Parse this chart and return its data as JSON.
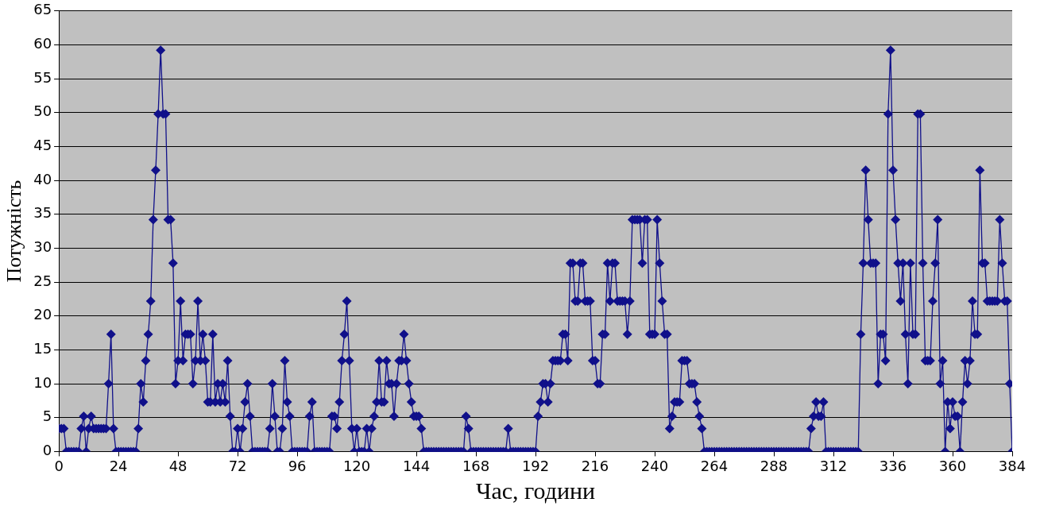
{
  "chart_data": {
    "type": "line",
    "xlabel": "Час, години",
    "ylabel": "Потужність",
    "xlim": [
      0,
      384
    ],
    "xticks": [
      0,
      24,
      48,
      72,
      96,
      120,
      144,
      168,
      192,
      216,
      240,
      264,
      288,
      312,
      336,
      360,
      384
    ],
    "ylim": [
      0,
      65
    ],
    "yticks": [
      0,
      5,
      10,
      15,
      20,
      25,
      30,
      35,
      40,
      45,
      50,
      55,
      60,
      65
    ],
    "grid": "y",
    "legend": false,
    "marker": "diamond",
    "line_style": "solid",
    "x": [
      0,
      1,
      2,
      3,
      4,
      5,
      6,
      7,
      8,
      9,
      10,
      11,
      12,
      13,
      14,
      15,
      16,
      17,
      18,
      19,
      20,
      21,
      22,
      23,
      24,
      25,
      26,
      27,
      28,
      29,
      30,
      31,
      32,
      33,
      34,
      35,
      36,
      37,
      38,
      39,
      40,
      41,
      42,
      43,
      44,
      45,
      46,
      47,
      48,
      49,
      50,
      51,
      52,
      53,
      54,
      55,
      56,
      57,
      58,
      59,
      60,
      61,
      62,
      63,
      64,
      65,
      66,
      67,
      68,
      69,
      70,
      71,
      72,
      73,
      74,
      75,
      76,
      77,
      78,
      79,
      80,
      81,
      82,
      83,
      84,
      85,
      86,
      87,
      88,
      89,
      90,
      91,
      92,
      93,
      94,
      95,
      96,
      97,
      98,
      99,
      100,
      101,
      102,
      103,
      104,
      105,
      106,
      107,
      108,
      109,
      110,
      111,
      112,
      113,
      114,
      115,
      116,
      117,
      118,
      119,
      120,
      121,
      122,
      123,
      124,
      125,
      126,
      127,
      128,
      129,
      130,
      131,
      132,
      133,
      134,
      135,
      136,
      137,
      138,
      139,
      140,
      141,
      142,
      143,
      144,
      145,
      146,
      147,
      148,
      149,
      150,
      151,
      152,
      153,
      154,
      155,
      156,
      157,
      158,
      159,
      160,
      161,
      162,
      163,
      164,
      165,
      166,
      167,
      168,
      169,
      170,
      171,
      172,
      173,
      174,
      175,
      176,
      177,
      178,
      179,
      180,
      181,
      182,
      183,
      184,
      185,
      186,
      187,
      188,
      189,
      190,
      191,
      192,
      193,
      194,
      195,
      196,
      197,
      198,
      199,
      200,
      201,
      202,
      203,
      204,
      205,
      206,
      207,
      208,
      209,
      210,
      211,
      212,
      213,
      214,
      215,
      216,
      217,
      218,
      219,
      220,
      221,
      222,
      223,
      224,
      225,
      226,
      227,
      228,
      229,
      230,
      231,
      232,
      233,
      234,
      235,
      236,
      237,
      238,
      239,
      240,
      241,
      242,
      243,
      244,
      245,
      246,
      247,
      248,
      249,
      250,
      251,
      252,
      253,
      254,
      255,
      256,
      257,
      258,
      259,
      260,
      261,
      262,
      263,
      264,
      265,
      266,
      267,
      268,
      269,
      270,
      271,
      272,
      273,
      274,
      275,
      276,
      277,
      278,
      279,
      280,
      281,
      282,
      283,
      284,
      285,
      286,
      287,
      288,
      289,
      290,
      291,
      292,
      293,
      294,
      295,
      296,
      297,
      298,
      299,
      300,
      301,
      302,
      303,
      304,
      305,
      306,
      307,
      308,
      309,
      310,
      311,
      312,
      313,
      314,
      315,
      316,
      317,
      318,
      319,
      320,
      321,
      322,
      323,
      324,
      325,
      326,
      327,
      328,
      329,
      330,
      331,
      332,
      333,
      334,
      335,
      336,
      337,
      338,
      339,
      340,
      341,
      342,
      343,
      344,
      345,
      346,
      347,
      348,
      349,
      350,
      351,
      352,
      353,
      354,
      355,
      356,
      357,
      358,
      359,
      360,
      361,
      362,
      363,
      364,
      365,
      366,
      367,
      368,
      369,
      370,
      371,
      372,
      373,
      374,
      375,
      376,
      377,
      378,
      379,
      380,
      381,
      382,
      383,
      384
    ],
    "series": [
      {
        "color": "#10108a",
        "values": [
          3.4,
          3.4,
          3.4,
          0,
          0,
          0,
          0,
          0,
          0,
          3.4,
          5.2,
          0,
          3.4,
          5.2,
          3.4,
          3.4,
          3.4,
          3.4,
          3.4,
          3.4,
          10,
          17.3,
          3.4,
          0,
          0,
          0,
          0,
          0,
          0,
          0,
          0,
          0,
          3.4,
          10,
          7.3,
          13.4,
          17.3,
          22.2,
          34.2,
          41.5,
          49.8,
          59.2,
          49.8,
          49.8,
          34.2,
          34.2,
          27.8,
          10,
          13.4,
          22.2,
          13.4,
          17.3,
          17.3,
          17.3,
          10,
          13.4,
          22.2,
          13.4,
          17.3,
          13.4,
          7.3,
          7.3,
          17.3,
          7.3,
          10,
          7.3,
          10,
          7.3,
          13.4,
          5.2,
          0,
          0,
          3.4,
          0,
          3.4,
          7.3,
          10,
          5.2,
          0,
          0,
          0,
          0,
          0,
          0,
          0,
          3.4,
          10,
          5.2,
          0,
          0,
          3.4,
          13.4,
          7.3,
          5.2,
          0,
          0,
          0,
          0,
          0,
          0,
          0,
          5.2,
          7.3,
          0,
          0,
          0,
          0,
          0,
          0,
          0,
          5.2,
          5.2,
          3.4,
          7.3,
          13.4,
          17.3,
          22.2,
          13.4,
          3.4,
          0,
          3.4,
          0,
          0,
          0,
          3.4,
          0,
          3.4,
          5.2,
          7.3,
          13.4,
          7.3,
          7.3,
          13.4,
          10,
          10,
          5.2,
          10,
          13.4,
          13.4,
          17.3,
          13.4,
          10,
          7.3,
          5.2,
          5.2,
          5.2,
          3.4,
          0,
          0,
          0,
          0,
          0,
          0,
          0,
          0,
          0,
          0,
          0,
          0,
          0,
          0,
          0,
          0,
          0,
          5.2,
          3.4,
          0,
          0,
          0,
          0,
          0,
          0,
          0,
          0,
          0,
          0,
          0,
          0,
          0,
          0,
          0,
          3.4,
          0,
          0,
          0,
          0,
          0,
          0,
          0,
          0,
          0,
          0,
          0,
          5.2,
          7.3,
          10,
          10,
          7.3,
          10,
          13.4,
          13.4,
          13.4,
          13.4,
          17.3,
          17.3,
          13.4,
          27.8,
          27.8,
          22.2,
          22.2,
          27.8,
          27.8,
          22.2,
          22.2,
          22.2,
          13.4,
          13.4,
          10,
          10,
          17.3,
          17.3,
          27.8,
          22.2,
          27.8,
          27.8,
          22.2,
          22.2,
          22.2,
          22.2,
          17.3,
          22.2,
          34.2,
          34.2,
          34.2,
          34.2,
          27.8,
          34.2,
          34.2,
          17.3,
          17.3,
          17.3,
          34.2,
          27.8,
          22.2,
          17.3,
          17.3,
          3.4,
          5.2,
          7.3,
          7.3,
          7.3,
          13.4,
          13.4,
          13.4,
          10,
          10,
          10,
          7.3,
          5.2,
          3.4,
          0,
          0,
          0,
          0,
          0,
          0,
          0,
          0,
          0,
          0,
          0,
          0,
          0,
          0,
          0,
          0,
          0,
          0,
          0,
          0,
          0,
          0,
          0,
          0,
          0,
          0,
          0,
          0,
          0,
          0,
          0,
          0,
          0,
          0,
          0,
          0,
          0,
          0,
          0,
          0,
          0,
          0,
          0,
          3.4,
          5.2,
          7.3,
          5.2,
          5.2,
          7.3,
          0,
          0,
          0,
          0,
          0,
          0,
          0,
          0,
          0,
          0,
          0,
          0,
          0,
          0,
          17.3,
          27.8,
          41.5,
          34.2,
          27.8,
          27.8,
          27.8,
          10,
          17.3,
          17.3,
          13.4,
          49.8,
          59.2,
          41.5,
          34.2,
          27.8,
          22.2,
          27.8,
          17.3,
          10,
          27.8,
          17.3,
          17.3,
          49.8,
          49.8,
          27.8,
          13.4,
          13.4,
          13.4,
          22.2,
          27.8,
          34.2,
          10,
          13.4,
          0,
          7.3,
          3.4,
          7.3,
          5.2,
          5.2,
          0,
          7.3,
          13.4,
          10,
          13.4,
          22.2,
          17.3,
          17.3,
          41.5,
          27.8,
          27.8,
          22.2,
          22.2,
          22.2,
          22.2,
          22.2,
          34.2,
          27.8,
          22.2,
          22.2,
          10,
          0
        ]
      }
    ]
  }
}
